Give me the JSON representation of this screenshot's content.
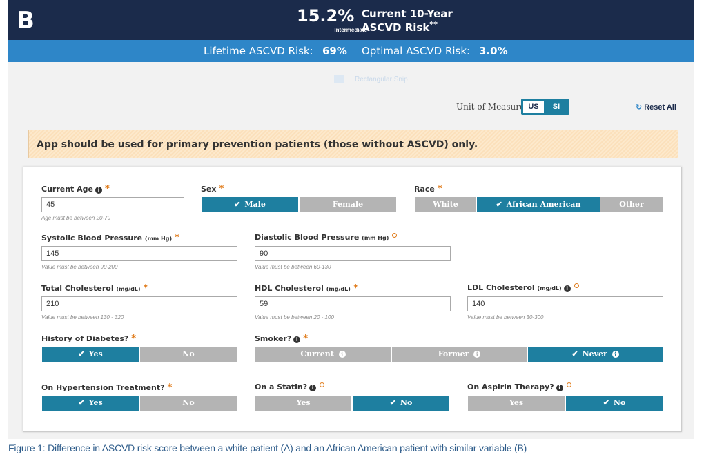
{
  "header": {
    "panel_letter": "B",
    "risk_value": "15.2%",
    "risk_category": "Intermediate",
    "risk_title_line1": "Current 10-Year",
    "risk_title_line2": "ASCVD Risk",
    "risk_title_marker": "**"
  },
  "lifetime": {
    "lifetime_label": "Lifetime ASCVD Risk:",
    "lifetime_value": "69%",
    "optimal_label": "Optimal ASCVD Risk:",
    "optimal_value": "3.0%"
  },
  "snip": {
    "label": "Rectangular Snip"
  },
  "units": {
    "label": "Unit of Measure",
    "us": "US",
    "si": "SI",
    "selected": "US"
  },
  "reset": {
    "label": "Reset All"
  },
  "warning": {
    "text": "App should be used for primary prevention patients (those without ASCVD) only."
  },
  "form": {
    "age": {
      "label": "Current Age",
      "value": "45",
      "hint": "Age must be between 20-79"
    },
    "sex": {
      "label": "Sex",
      "options": [
        "Male",
        "Female"
      ],
      "selected": "Male"
    },
    "race": {
      "label": "Race",
      "options": [
        "White",
        "African American",
        "Other"
      ],
      "selected": "African American"
    },
    "sbp": {
      "label": "Systolic Blood Pressure",
      "unit": "(mm Hg)",
      "value": "145",
      "hint": "Value must be between 90-200"
    },
    "dbp": {
      "label": "Diastolic Blood Pressure",
      "unit": "(mm Hg)",
      "value": "90",
      "hint": "Value must be between 60-130"
    },
    "tc": {
      "label": "Total Cholesterol",
      "unit": "(mg/dL)",
      "value": "210",
      "hint": "Value must be between 130 - 320"
    },
    "hdl": {
      "label": "HDL Cholesterol",
      "unit": "(mg/dL)",
      "value": "59",
      "hint": "Value must be between 20 - 100"
    },
    "ldl": {
      "label": "LDL Cholesterol",
      "unit": "(mg/dL)",
      "value": "140",
      "hint": "Value must be between 30-300"
    },
    "diabetes": {
      "label": "History of Diabetes?",
      "options": [
        "Yes",
        "No"
      ],
      "selected": "Yes"
    },
    "smoker": {
      "label": "Smoker?",
      "options": [
        "Current",
        "Former",
        "Never"
      ],
      "selected": "Never"
    },
    "htn": {
      "label": "On Hypertension Treatment?",
      "options": [
        "Yes",
        "No"
      ],
      "selected": "Yes"
    },
    "statin": {
      "label": "On a Statin?",
      "options": [
        "Yes",
        "No"
      ],
      "selected": "No"
    },
    "aspirin": {
      "label": "On Aspirin Therapy?",
      "options": [
        "Yes",
        "No"
      ],
      "selected": "No"
    }
  },
  "caption": "Figure 1: Difference in ASCVD risk score between a white patient (A) and an African American patient with similar variable (B)",
  "colors": {
    "header_bg": "#1b2b4b",
    "subheader_bg": "#2e86c8",
    "active_button": "#1e7fa0",
    "inactive_button": "#b4b4b4",
    "required_marker": "#e07b1a",
    "caption_text": "#2e5c8a"
  }
}
